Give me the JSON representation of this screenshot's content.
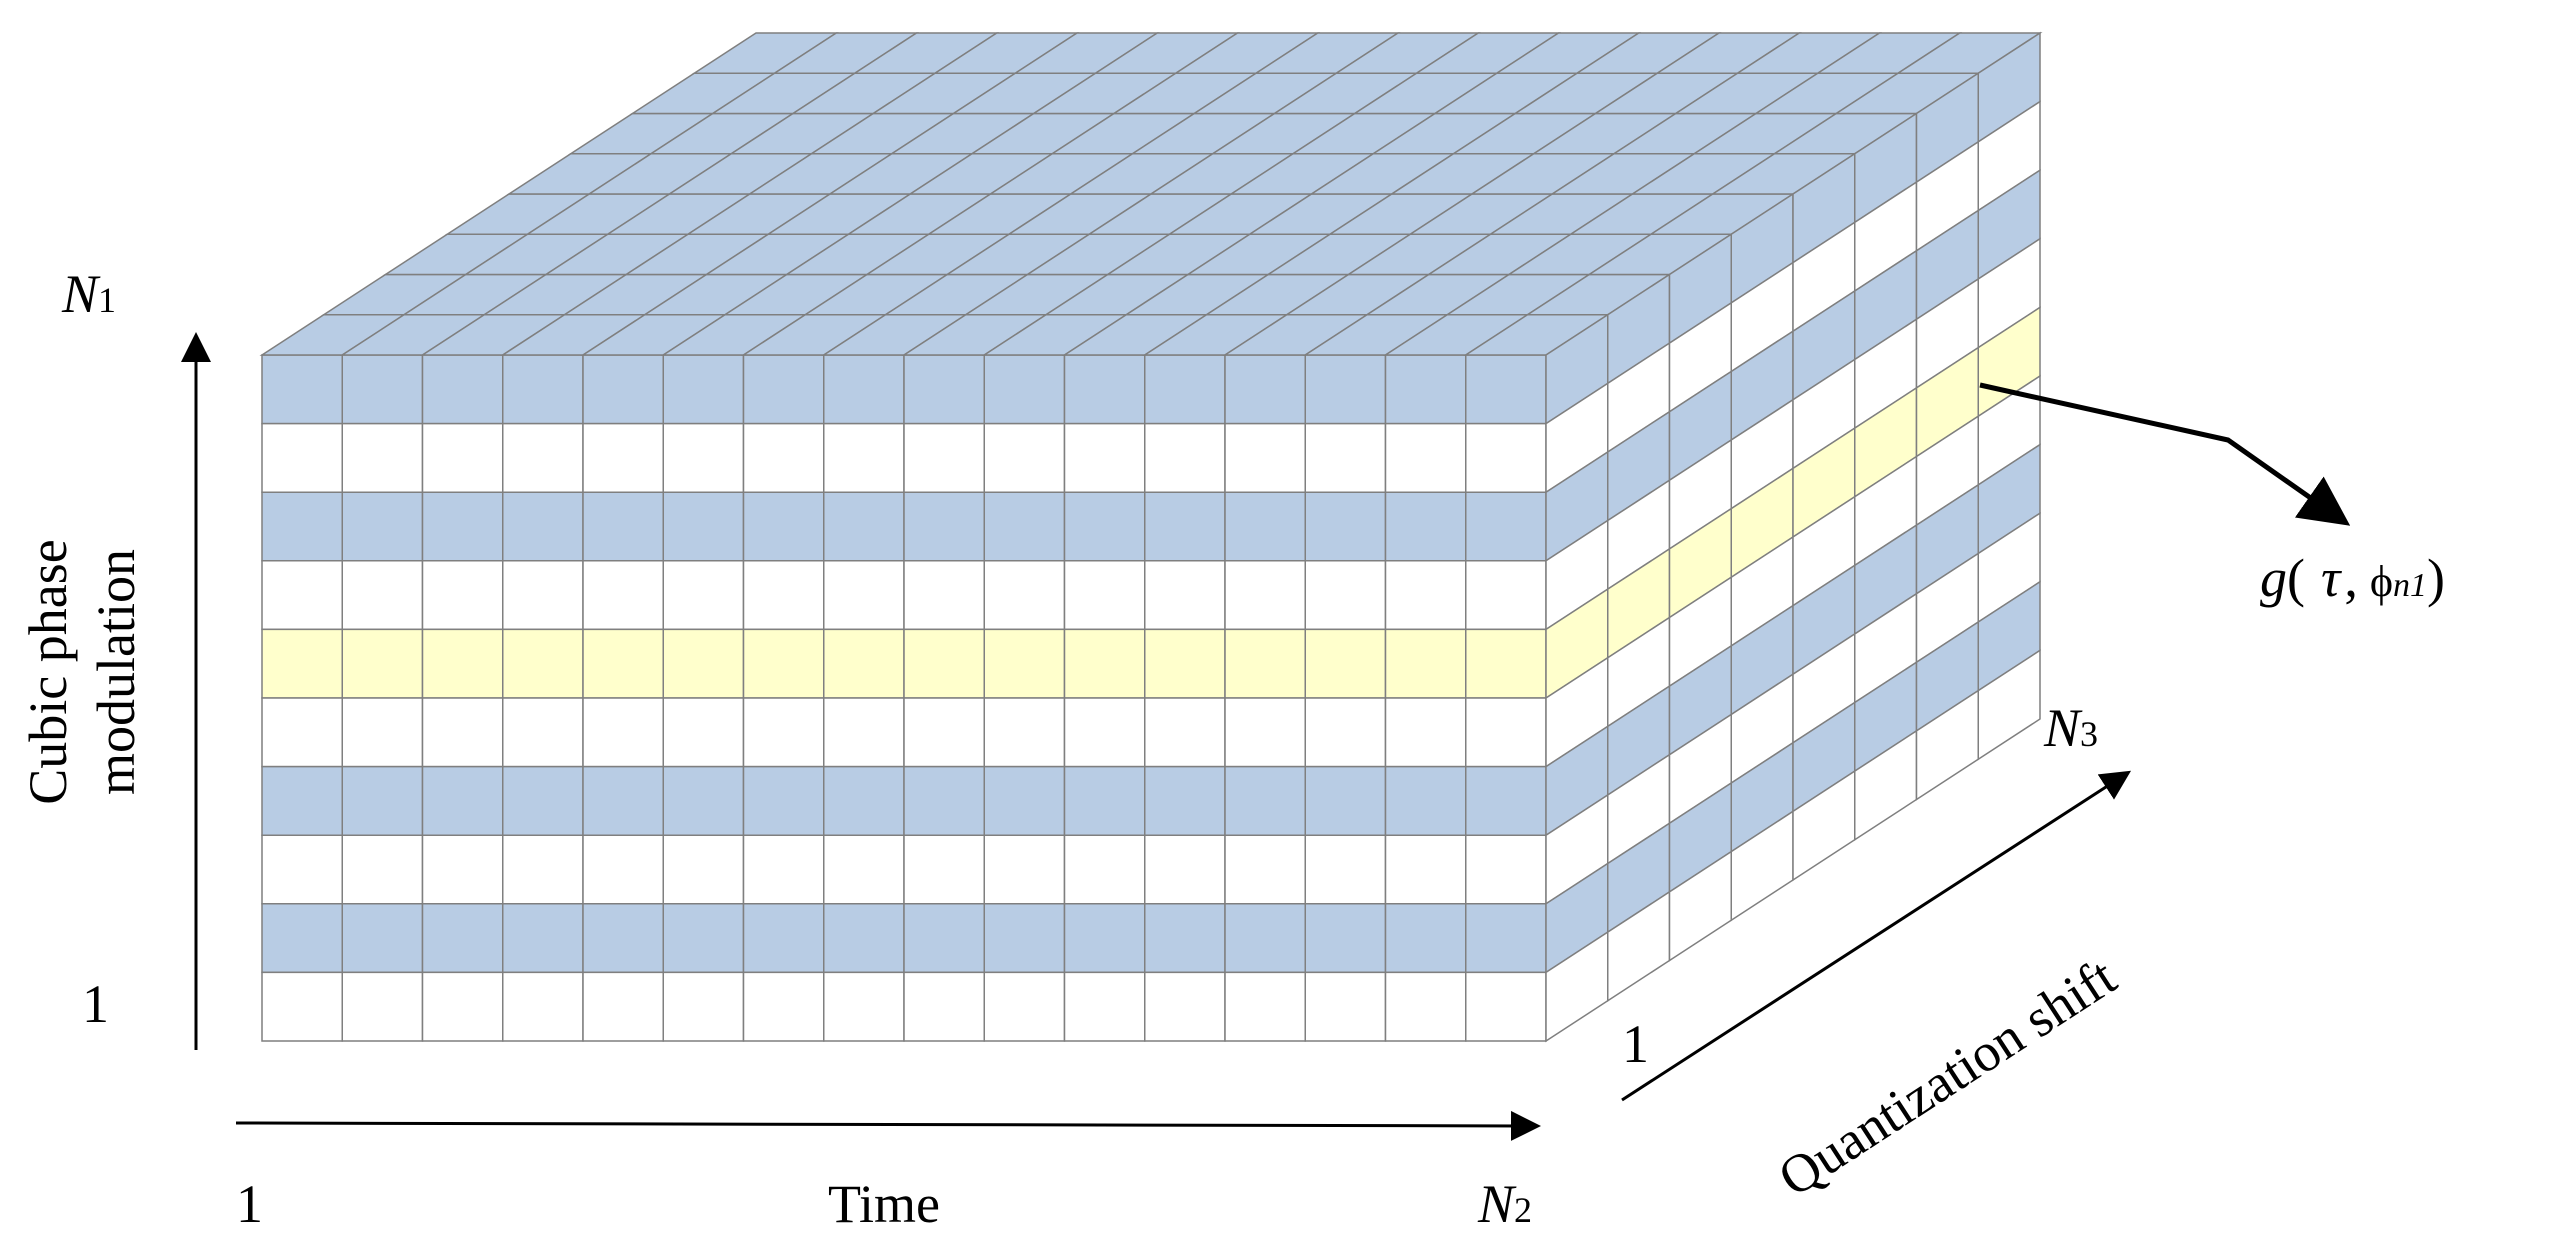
{
  "diagram": {
    "axes": {
      "cubic_phase": {
        "label_line1": "Cubic phase",
        "label_line2": "modulation",
        "start_label": "1",
        "end_label_main": "N",
        "end_label_sub": "1"
      },
      "time": {
        "label": "Time",
        "start_label": "1",
        "end_label_main": "N",
        "end_label_sub": "2"
      },
      "quantization_shift": {
        "label": "Quantization shift",
        "start_label": "1",
        "end_label_main": "N",
        "end_label_sub": "3"
      }
    },
    "callout": {
      "func": "g",
      "open_paren": "(",
      "tau": "τ",
      "comma": ",",
      "phi": "ϕ",
      "phi_sub": "n1",
      "close_paren": ")"
    },
    "grid": {
      "time_cells": 16,
      "phase_rows": 10,
      "depth_cells": 8,
      "highlighted_row_from_top": 4,
      "blue_rows_from_top": [
        0,
        2,
        6,
        8
      ]
    },
    "colors": {
      "blue": "#b8cce4",
      "yellow": "#ffffcc",
      "white": "#ffffff",
      "cell_border": "#7f7f7f"
    }
  }
}
